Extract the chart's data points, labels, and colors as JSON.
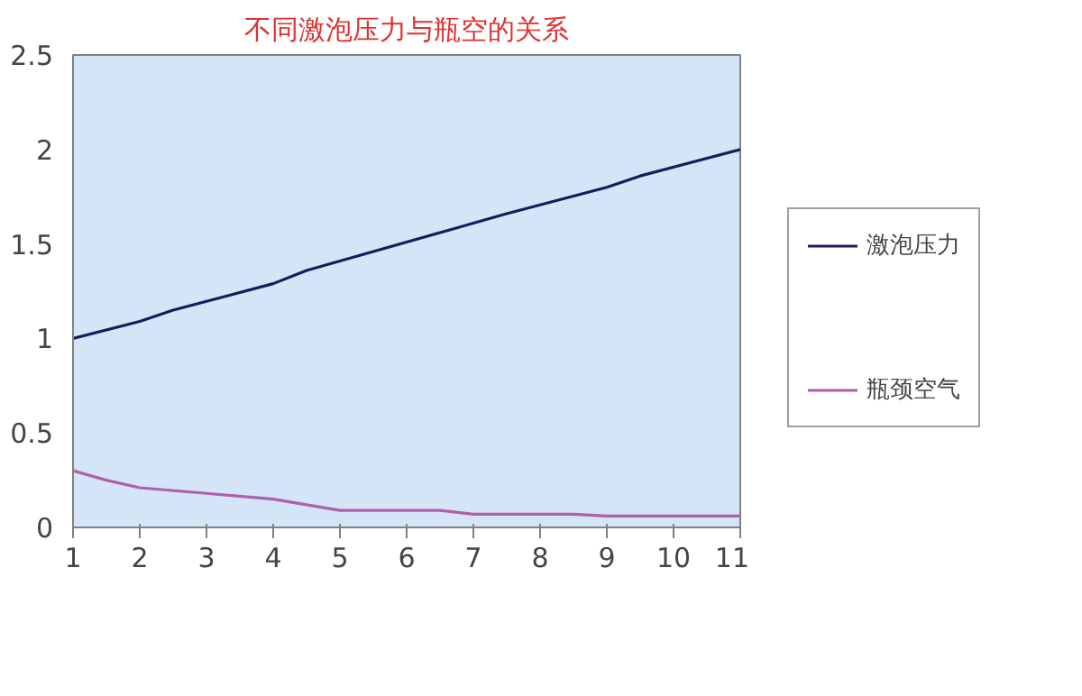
{
  "chart_data": {
    "type": "line",
    "title": "不同激泡压力与瓶空的关系",
    "xlim": [
      1,
      11
    ],
    "xticks": [
      1,
      2,
      3,
      4,
      5,
      6,
      7,
      8,
      9,
      10,
      11
    ],
    "ylim": [
      0,
      2.5
    ],
    "yticks": [
      0,
      0.5,
      1,
      1.5,
      2,
      2.5
    ],
    "grid": false,
    "legend": "right",
    "line_style": "solid",
    "series": [
      {
        "name": "激泡压力",
        "color": "#1a1a5e",
        "x": [
          1,
          2,
          2.5,
          4,
          4.5,
          5,
          7,
          7.5,
          9,
          9.5,
          11
        ],
        "values": [
          1.0,
          1.09,
          1.15,
          1.29,
          1.36,
          1.41,
          1.61,
          1.66,
          1.8,
          1.86,
          2.0
        ]
      },
      {
        "name": "瓶颈空气",
        "color": "#b060a8",
        "x": [
          1,
          1.5,
          2,
          3,
          4,
          5,
          6.5,
          7,
          8.5,
          9,
          11
        ],
        "values": [
          0.3,
          0.25,
          0.21,
          0.18,
          0.15,
          0.09,
          0.09,
          0.07,
          0.07,
          0.06,
          0.06
        ]
      }
    ]
  }
}
